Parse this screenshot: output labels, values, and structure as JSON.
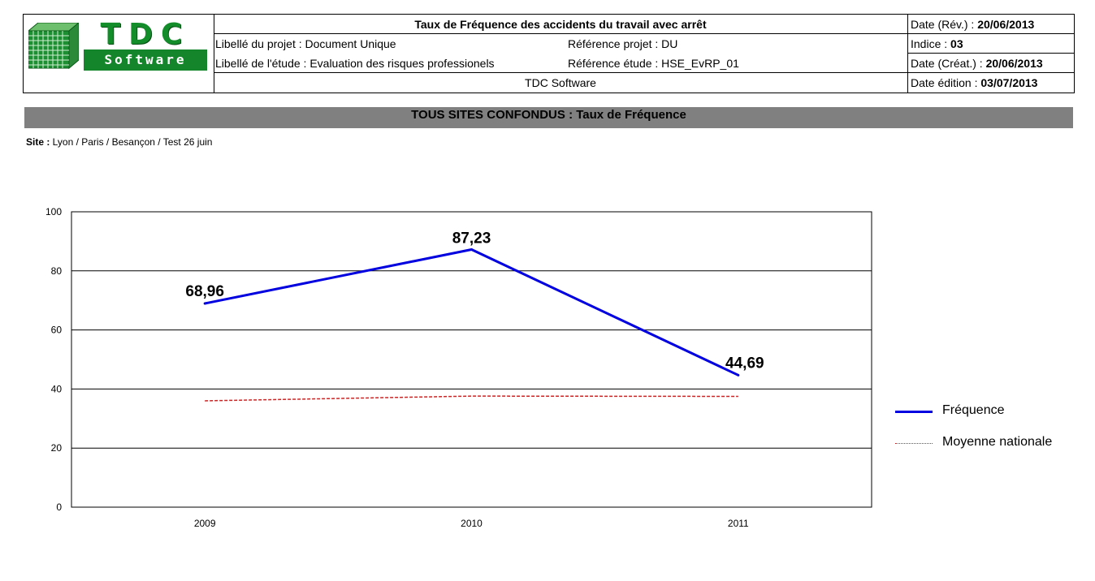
{
  "header": {
    "title": "Taux de Fréquence des accidents du travail avec arrêt",
    "projet_label": "Libellé du projet  : Document Unique",
    "etude_label": "Libellé de l'étude  : Evaluation des risques professionels",
    "ref_projet": "Référence projet  : DU",
    "ref_etude": "Référence étude  : HSE_EvRP_01",
    "company": "TDC Software",
    "date_rev_label": "Date (Rév.) : ",
    "date_rev": "20/06/2013",
    "indice_label": "Indice : ",
    "indice": "03",
    "date_creat_label": "Date (Créat.) : ",
    "date_creat": "20/06/2013",
    "date_edition_label": "Date édition : ",
    "date_edition": "03/07/2013",
    "logo_top": "TDC",
    "logo_bottom": "Software"
  },
  "banner": "TOUS SITES CONFONDUS : Taux de Fréquence",
  "site": {
    "label": "Site : ",
    "value": "Lyon / Paris / Besançon / Test 26 juin"
  },
  "colors": {
    "frequence": "#0000e0",
    "moyenne": "#cc2222",
    "banner": "#808080",
    "logo_green": "#14852a"
  },
  "chart_data": {
    "type": "line",
    "categories": [
      "2009",
      "2010",
      "2011"
    ],
    "ylim": [
      0,
      100
    ],
    "yticks": [
      0,
      20,
      40,
      60,
      80,
      100
    ],
    "grid": true,
    "legend_position": "right",
    "series": [
      {
        "name": "Fréquence",
        "values": [
          68.96,
          87.23,
          44.69
        ],
        "labels": [
          "68,96",
          "87,23",
          "44,69"
        ]
      },
      {
        "name": "Moyenne nationale",
        "values": [
          36.0,
          37.6,
          37.5
        ]
      }
    ]
  }
}
